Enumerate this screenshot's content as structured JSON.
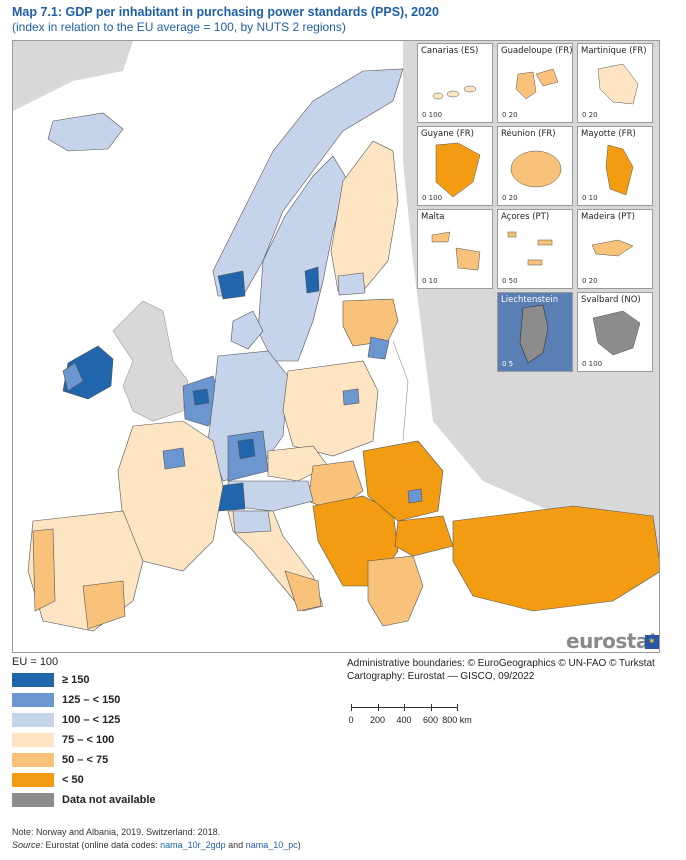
{
  "header": {
    "prefix": "Map 7.1:",
    "title": "GDP per inhabitant in purchasing power standards (PPS), 2020",
    "subtitle": "(index in relation to the EU average = 100, by NUTS 2 regions)"
  },
  "colors": {
    "ge150": "#2166ac",
    "125to150": "#6b96cf",
    "100to125": "#c5d4ea",
    "75to100": "#fde4c2",
    "50to75": "#f8c27a",
    "lt50": "#f39c12",
    "na": "#8c8c8c",
    "sea": "#ffffff",
    "nonmember": "#d8d8d8"
  },
  "insets": [
    {
      "name": "Canarias (ES)",
      "scale": "0   100",
      "fill_class": "75to100"
    },
    {
      "name": "Guadeloupe (FR)",
      "scale": "0   20",
      "fill_class": "50to75"
    },
    {
      "name": "Martinique (FR)",
      "scale": "0   20",
      "fill_class": "75to100"
    },
    {
      "name": "Guyane (FR)",
      "scale": "0   100",
      "fill_class": "lt50"
    },
    {
      "name": "Réunion (FR)",
      "scale": "0   20",
      "fill_class": "50to75"
    },
    {
      "name": "Mayotte (FR)",
      "scale": "0   10",
      "fill_class": "lt50"
    },
    {
      "name": "Malta",
      "scale": "0   10",
      "fill_class": "50to75"
    },
    {
      "name": "Açores (PT)",
      "scale": "0   50",
      "fill_class": "50to75"
    },
    {
      "name": "Madeira (PT)",
      "scale": "0   20",
      "fill_class": "50to75"
    },
    {
      "name": "Liechtenstein",
      "scale": "0   5",
      "fill_class": "na"
    },
    {
      "name": "Svalbard (NO)",
      "scale": "0   100",
      "fill_class": "na"
    }
  ],
  "logo": {
    "text": "eurostat",
    "flag_stars": "✶"
  },
  "legend": {
    "title": "EU = 100",
    "items": [
      {
        "label": "≥ 150",
        "color": "#2166ac"
      },
      {
        "label": "125 – < 150",
        "color": "#6b96cf"
      },
      {
        "label": "100 – < 125",
        "color": "#c5d4ea"
      },
      {
        "label": "75 – < 100",
        "color": "#fde4c2"
      },
      {
        "label": "50 – < 75",
        "color": "#f8c27a"
      },
      {
        "label": "< 50",
        "color": "#f39c12"
      },
      {
        "label": "Data not available",
        "color": "#8c8c8c"
      }
    ]
  },
  "credits": {
    "line1": "Administrative boundaries: © EuroGeographics © UN-FAO © Turkstat",
    "line2": "Cartography: Eurostat — GISCO, 09/2022"
  },
  "scalebar": {
    "ticks": [
      "0",
      "200",
      "400",
      "600",
      "800 km"
    ]
  },
  "footer": {
    "note": "Note: Norway and Albania, 2019. Switzerland: 2018.",
    "source_label": "Source:",
    "source_text": " Eurostat (online data codes: ",
    "code1": "nama_10r_2gdp",
    "and": " and ",
    "code2": "nama_10_pc",
    "close": ")"
  }
}
